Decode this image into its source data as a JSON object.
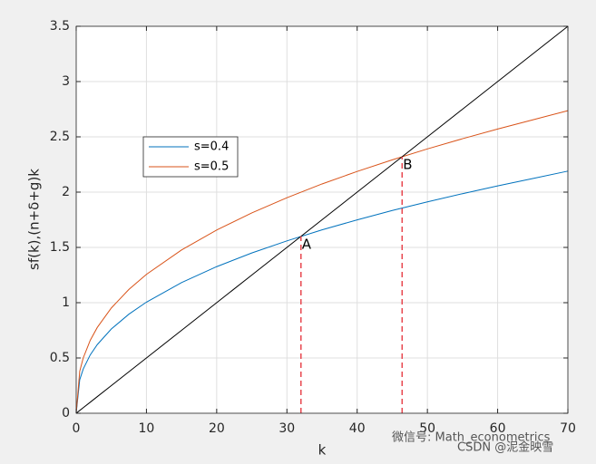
{
  "chart_data": {
    "type": "line",
    "xlabel": "k",
    "ylabel": "sf(k),(n+δ+g)k",
    "x": [
      0,
      0.5,
      1,
      2,
      3,
      5,
      7.5,
      10,
      15,
      20,
      25,
      30,
      35,
      40,
      45,
      50,
      55,
      60,
      65,
      70
    ],
    "series": [
      {
        "name": "s=0.4",
        "color": "#0072bd",
        "values": [
          0,
          0.303,
          0.4,
          0.528,
          0.621,
          0.762,
          0.896,
          1.005,
          1.182,
          1.326,
          1.45,
          1.559,
          1.659,
          1.749,
          1.834,
          1.912,
          1.986,
          2.056,
          2.123,
          2.19
        ]
      },
      {
        "name": "s=0.5",
        "color": "#d95319",
        "values": [
          0,
          0.379,
          0.5,
          0.66,
          0.776,
          0.952,
          1.12,
          1.256,
          1.477,
          1.657,
          1.812,
          1.949,
          2.074,
          2.187,
          2.292,
          2.391,
          2.483,
          2.571,
          2.654,
          2.737
        ]
      },
      {
        "color": "#000000",
        "values": [
          0,
          0.025,
          0.05,
          0.1,
          0.15,
          0.25,
          0.375,
          0.5,
          0.75,
          1,
          1.25,
          1.5,
          1.75,
          2,
          2.25,
          2.5,
          2.75,
          3,
          3.25,
          3.5
        ]
      }
    ],
    "drop_lines": [
      {
        "x": 32,
        "y": 1.6,
        "color": "#e8474f"
      },
      {
        "x": 46.4,
        "y": 2.32,
        "color": "#e8474f"
      }
    ],
    "annotations": [
      {
        "text": "A",
        "x": 32,
        "y": 1.6
      },
      {
        "text": "B",
        "x": 46.4,
        "y": 2.32
      }
    ],
    "xlim": [
      0,
      70
    ],
    "xticks": [
      0,
      10,
      20,
      30,
      40,
      50,
      60,
      70
    ],
    "ylim": [
      0,
      3.5
    ],
    "yticks": [
      0,
      0.5,
      1,
      1.5,
      2,
      2.5,
      3,
      3.5
    ],
    "grid": true,
    "legend": "upper left",
    "watermark": [
      "微信号: Math_econometrics",
      "CSDN @泥金映雪"
    ]
  }
}
